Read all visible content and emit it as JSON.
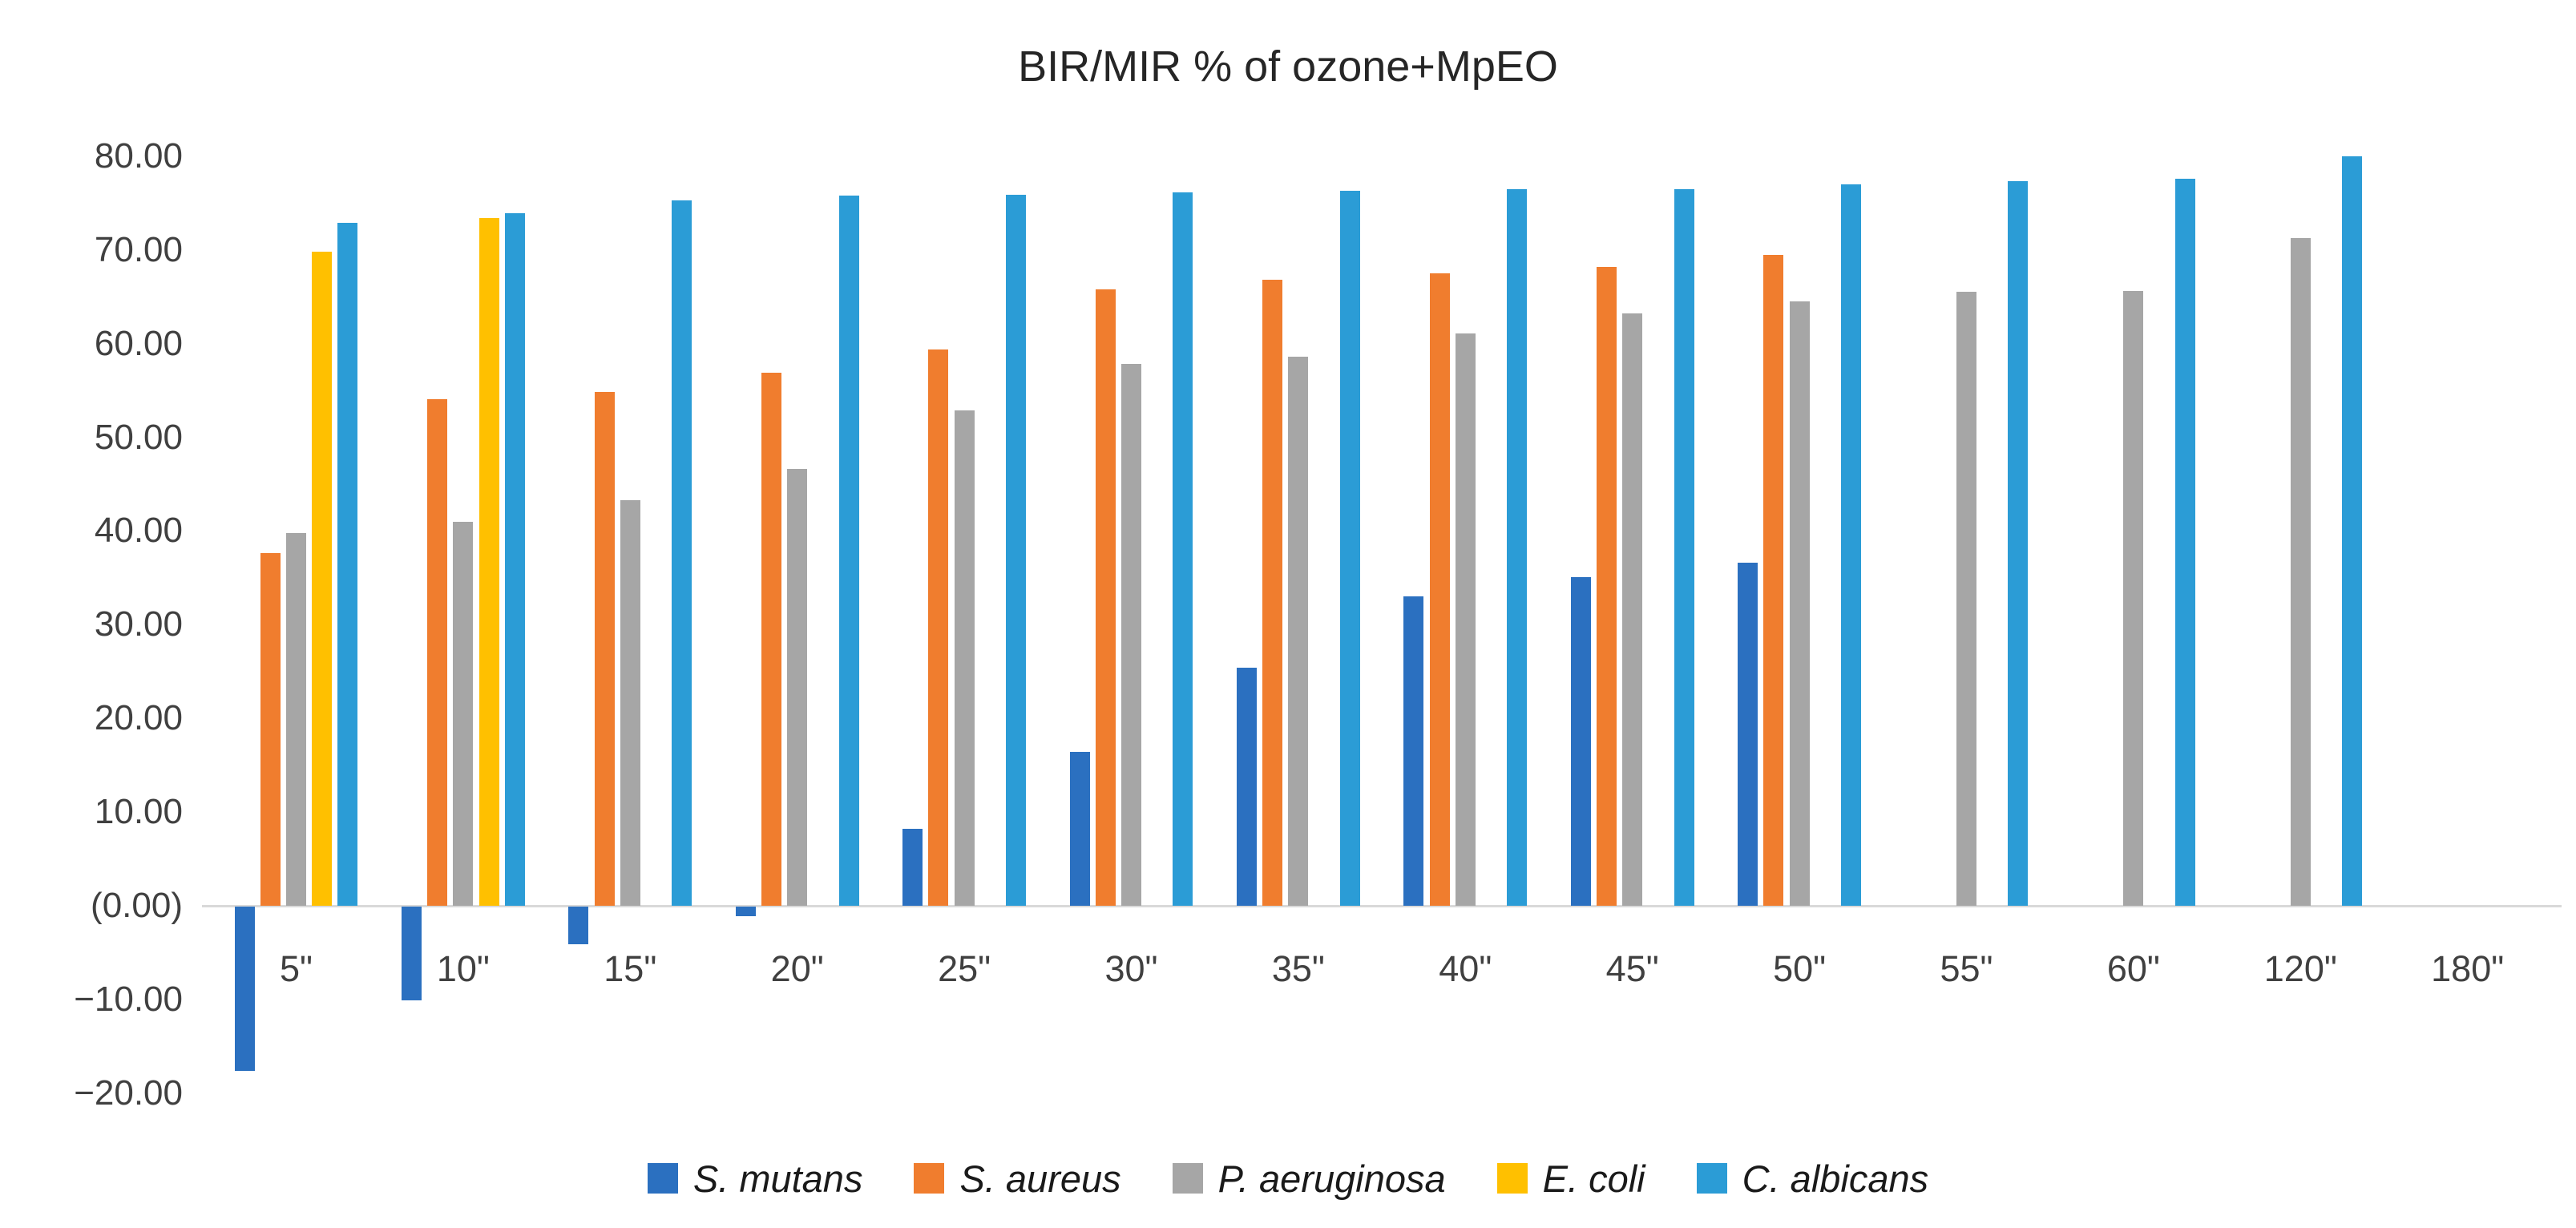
{
  "chart_data": {
    "type": "bar",
    "title": "BIR/MIR % of ozone+MpEO",
    "categories": [
      "5\"",
      "10\"",
      "15\"",
      "20\"",
      "25\"",
      "30\"",
      "35\"",
      "40\"",
      "45\"",
      "50\"",
      "55\"",
      "60\"",
      "120\"",
      "180\""
    ],
    "series": [
      {
        "name": "S. mutans",
        "color": "#2B70C0",
        "values": [
          -17.5,
          -10.0,
          -4.0,
          -1.0,
          8.2,
          16.4,
          25.4,
          33.0,
          35.1,
          36.6,
          null,
          null,
          null,
          null
        ]
      },
      {
        "name": "S. aureus",
        "color": "#F07D2E",
        "values": [
          37.6,
          54.1,
          54.8,
          56.9,
          59.4,
          65.8,
          66.8,
          67.5,
          68.2,
          69.5,
          null,
          null,
          null,
          null
        ]
      },
      {
        "name": "P. aeruginosa",
        "color": "#A6A6A6",
        "values": [
          39.8,
          41.0,
          43.3,
          46.6,
          52.9,
          57.8,
          58.6,
          61.1,
          63.2,
          64.5,
          65.5,
          65.6,
          71.3,
          null
        ]
      },
      {
        "name": "E. coli",
        "color": "#FFC000",
        "values": [
          69.8,
          73.4,
          null,
          null,
          null,
          null,
          null,
          null,
          null,
          null,
          null,
          null,
          null,
          null
        ]
      },
      {
        "name": "C. albicans",
        "color": "#2B9CD6",
        "values": [
          72.9,
          73.9,
          75.3,
          75.8,
          75.9,
          76.1,
          76.3,
          76.5,
          76.5,
          77.0,
          77.3,
          77.6,
          80.0,
          null
        ]
      }
    ],
    "y_axis": {
      "min": -20,
      "max": 80,
      "tick_step": 10,
      "tick_values": [
        80,
        70,
        60,
        50,
        40,
        30,
        20,
        10,
        0,
        -10,
        -20
      ],
      "tick_labels": [
        "80.00",
        "70.00",
        "60.00",
        "50.00",
        "40.00",
        "30.00",
        "20.00",
        "10.00",
        "(0.00)",
        "−10.00",
        "−20.00"
      ]
    },
    "grid": false,
    "legend_position": "bottom",
    "axis_line_color": "#d9d9d9"
  }
}
